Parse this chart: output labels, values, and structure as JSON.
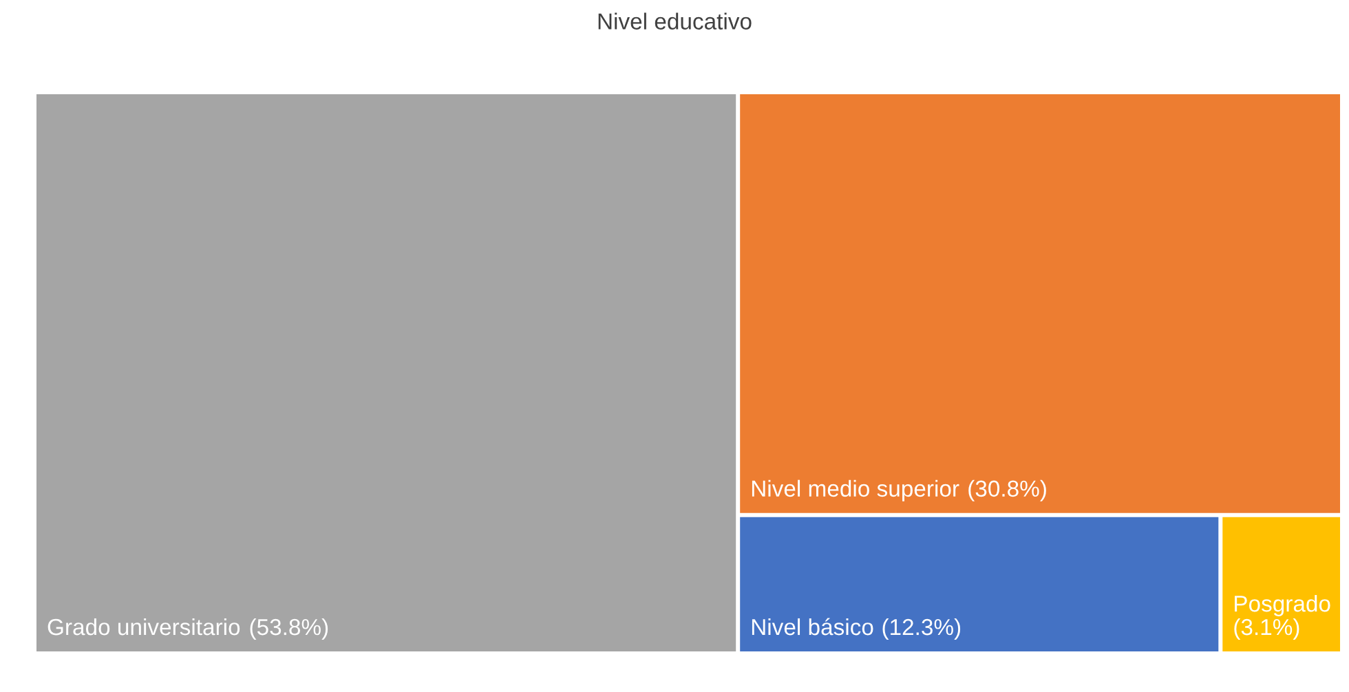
{
  "chart_data": {
    "type": "other",
    "title": "Nivel educativo",
    "categories": [
      "Grado universitario",
      "Nivel medio superior",
      "Nivel básico",
      "Posgrado"
    ],
    "values": [
      53.8,
      30.8,
      12.3,
      3.1
    ],
    "value_labels": [
      "(53.8%)",
      "(30.8%)",
      "(12.3%)",
      "(3.1%)"
    ],
    "colors": [
      "#a5a5a5",
      "#ed7d31",
      "#4472c4",
      "#ffc000"
    ]
  }
}
